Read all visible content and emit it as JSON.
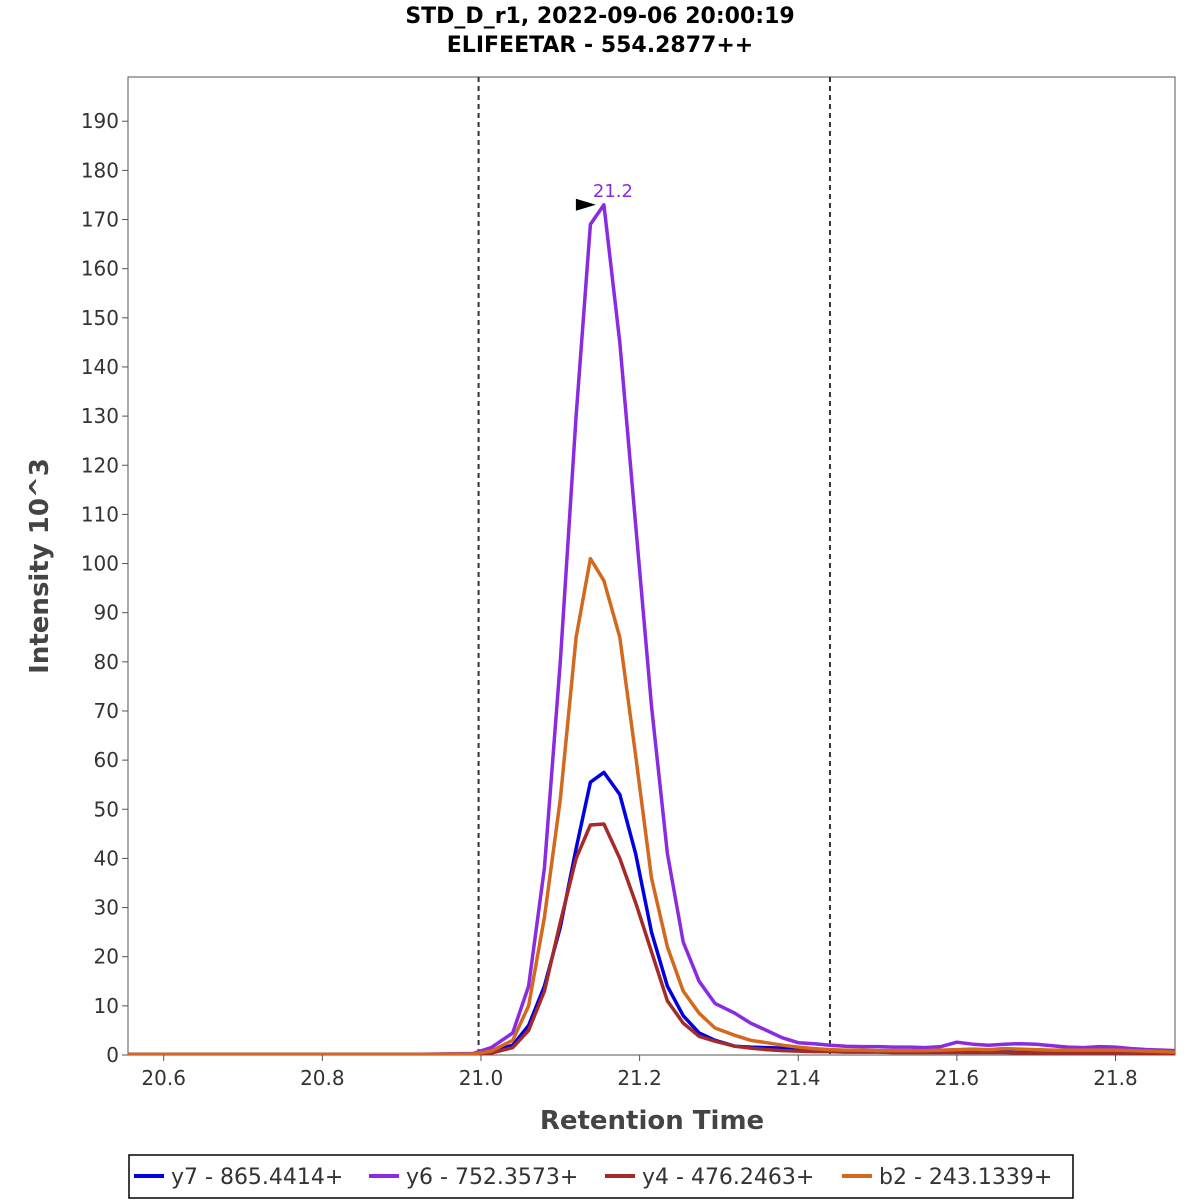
{
  "chart_data": {
    "type": "line",
    "title": "STD_D_r1, 2022-09-06 20:00:19",
    "subtitle": "ELIFEETAR - 554.2877++",
    "xlabel": "Retention Time",
    "ylabel": "Intensity 10^3",
    "xlim": [
      20.555,
      21.875
    ],
    "ylim": [
      0,
      199
    ],
    "xticks": [
      20.6,
      20.8,
      21.0,
      21.2,
      21.4,
      21.6,
      21.8
    ],
    "xtick_labels": [
      "20.6",
      "20.8",
      "21.0",
      "21.2",
      "21.4",
      "21.6",
      "21.8"
    ],
    "yticks": [
      0,
      10,
      20,
      30,
      40,
      50,
      60,
      70,
      80,
      90,
      100,
      110,
      120,
      130,
      140,
      150,
      160,
      170,
      180,
      190
    ],
    "ytick_labels": [
      "0",
      "10",
      "20",
      "30",
      "40",
      "50",
      "60",
      "70",
      "80",
      "90",
      "100",
      "110",
      "120",
      "130",
      "140",
      "150",
      "160",
      "170",
      "180",
      "190"
    ],
    "boundaries": [
      20.997,
      21.44
    ],
    "peak_annotation": {
      "x": 21.155,
      "y": 173,
      "label": "21.2",
      "color": "#8A2BE2"
    },
    "x": [
      20.555,
      20.6,
      20.7,
      20.8,
      20.9,
      20.99,
      21.013,
      21.04,
      21.06,
      21.08,
      21.1,
      21.12,
      21.138,
      21.155,
      21.175,
      21.195,
      21.215,
      21.235,
      21.255,
      21.275,
      21.295,
      21.32,
      21.34,
      21.36,
      21.38,
      21.4,
      21.42,
      21.44,
      21.46,
      21.48,
      21.5,
      21.52,
      21.54,
      21.56,
      21.58,
      21.6,
      21.62,
      21.64,
      21.66,
      21.68,
      21.7,
      21.72,
      21.74,
      21.76,
      21.78,
      21.8,
      21.82,
      21.84,
      21.86,
      21.875
    ],
    "series": [
      {
        "name": "y7 - 865.4414+",
        "color": "#0000E0",
        "values": [
          0.1,
          0.1,
          0.1,
          0.1,
          0.1,
          0.2,
          0.6,
          2.0,
          6.0,
          14.0,
          26.0,
          42.0,
          55.5,
          57.5,
          53.0,
          41.0,
          25.0,
          14.0,
          8.0,
          4.5,
          3.0,
          1.8,
          1.6,
          1.5,
          1.4,
          1.3,
          1.1,
          1.0,
          0.9,
          0.8,
          0.8,
          0.7,
          0.7,
          0.6,
          0.6,
          0.6,
          0.6,
          0.6,
          0.6,
          0.5,
          0.5,
          0.5,
          0.5,
          0.8,
          1.0,
          0.9,
          0.7,
          0.5,
          0.4,
          0.3
        ]
      },
      {
        "name": "y6 - 752.3573+",
        "color": "#8A2BE2",
        "values": [
          0.1,
          0.1,
          0.1,
          0.1,
          0.1,
          0.3,
          1.5,
          4.5,
          14.0,
          38.0,
          80.0,
          130.0,
          169.0,
          173.0,
          145.0,
          108.0,
          71.0,
          41.0,
          23.0,
          15.0,
          10.5,
          8.5,
          6.5,
          5.0,
          3.5,
          2.5,
          2.3,
          2.0,
          1.8,
          1.7,
          1.7,
          1.6,
          1.6,
          1.5,
          1.7,
          2.6,
          2.2,
          2.0,
          2.2,
          2.3,
          2.2,
          1.9,
          1.6,
          1.5,
          1.7,
          1.6,
          1.3,
          1.1,
          1.0,
          0.9
        ]
      },
      {
        "name": "y4 - 476.2463+",
        "color": "#A52A2A",
        "values": [
          0.1,
          0.1,
          0.1,
          0.1,
          0.1,
          0.1,
          0.4,
          1.5,
          5.0,
          13.0,
          27.0,
          40.0,
          46.8,
          47.0,
          40.0,
          31.0,
          21.0,
          11.0,
          6.5,
          3.8,
          2.8,
          1.8,
          1.4,
          1.1,
          0.9,
          0.8,
          0.7,
          0.7,
          0.6,
          0.6,
          0.6,
          0.5,
          0.5,
          0.5,
          0.5,
          0.5,
          0.5,
          0.5,
          0.5,
          0.4,
          0.4,
          0.4,
          0.4,
          0.4,
          0.4,
          0.4,
          0.4,
          0.3,
          0.3,
          0.3
        ]
      },
      {
        "name": "b2 - 243.1339+",
        "color": "#D2691E",
        "values": [
          0.1,
          0.1,
          0.1,
          0.1,
          0.1,
          0.2,
          0.8,
          3.0,
          10.0,
          28.0,
          52.0,
          85.0,
          101.0,
          96.5,
          85.0,
          61.0,
          36.0,
          22.0,
          13.0,
          8.5,
          5.5,
          4.0,
          3.0,
          2.5,
          2.0,
          1.6,
          1.3,
          1.1,
          1.0,
          1.0,
          0.9,
          0.9,
          0.9,
          0.9,
          1.0,
          1.1,
          1.2,
          1.1,
          1.3,
          1.2,
          1.1,
          1.0,
          1.0,
          1.0,
          1.0,
          1.0,
          0.9,
          0.8,
          0.7,
          0.6
        ]
      }
    ]
  }
}
